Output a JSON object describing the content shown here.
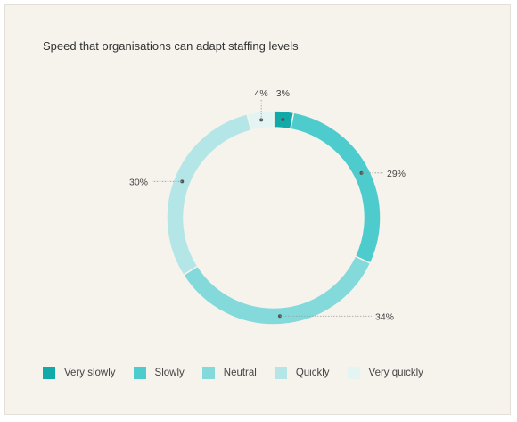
{
  "chart_data": {
    "type": "pie",
    "title": "Speed that organisations can adapt staffing levels",
    "categories": [
      "Very slowly",
      "Slowly",
      "Neutral",
      "Quickly",
      "Very quickly"
    ],
    "values": [
      3,
      29,
      34,
      30,
      4
    ],
    "data_labels": [
      "3%",
      "29%",
      "34%",
      "30%",
      "4%"
    ],
    "colors": [
      "#12aaa8",
      "#4ecbcc",
      "#84d9da",
      "#b4e6e7",
      "#e4f4f3"
    ],
    "legend_position": "bottom-left",
    "donut": true
  }
}
